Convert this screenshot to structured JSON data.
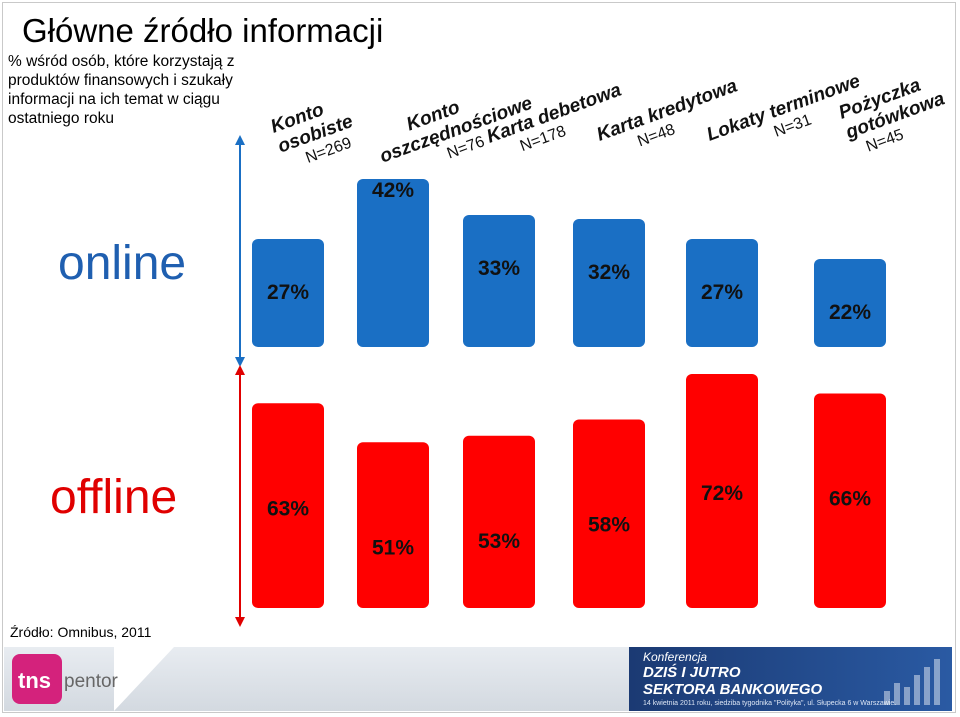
{
  "title": "Główne źródło informacji",
  "subtitle": "% wśród osób, które korzystają z produktów finansowych i szukały informacji na ich temat w ciągu ostatniego roku",
  "source": "Źródło: Omnibus, 2011",
  "colors": {
    "online": "#1a6fc4",
    "offline": "#ff0000",
    "online_text": "#1f5fb0",
    "offline_text": "#e00000"
  },
  "chart_data": {
    "type": "bar",
    "categories": [
      {
        "line1": "Konto",
        "line2": "osobiste",
        "n": "N=269"
      },
      {
        "line1": "Konto",
        "line2": "oszczędnościowe",
        "n": "N=76"
      },
      {
        "line1": "Karta debetowa",
        "line2": "",
        "n": "N=178"
      },
      {
        "line1": "Karta kredytowa",
        "line2": "",
        "n": "N=48"
      },
      {
        "line1": "Lokaty terminowe",
        "line2": "",
        "n": "N=31"
      },
      {
        "line1": "Pożyczka",
        "line2": "gotówkowa",
        "n": "N=45"
      }
    ],
    "series": [
      {
        "name": "online",
        "values": [
          27,
          42,
          33,
          32,
          27,
          22
        ],
        "labels": [
          "27%",
          "42%",
          "33%",
          "32%",
          "27%",
          "22%"
        ]
      },
      {
        "name": "offline",
        "values": [
          63,
          51,
          53,
          58,
          72,
          66
        ],
        "labels": [
          "63%",
          "51%",
          "53%",
          "58%",
          "72%",
          "66%"
        ]
      }
    ]
  },
  "logo": {
    "brand": "tns",
    "sub": "pentor"
  },
  "banner": {
    "line1": "Konferencja",
    "line2": "DZIŚ I JUTRO",
    "line3": "SEKTORA BANKOWEGO",
    "line4": "14 kwietnia 2011 roku, siedziba tygodnika \"Polityka\", ul. Słupecka 6 w Warszawie."
  },
  "icons": {
    "logo": "tns-logo-icon",
    "arrow": "double-arrow-icon"
  }
}
